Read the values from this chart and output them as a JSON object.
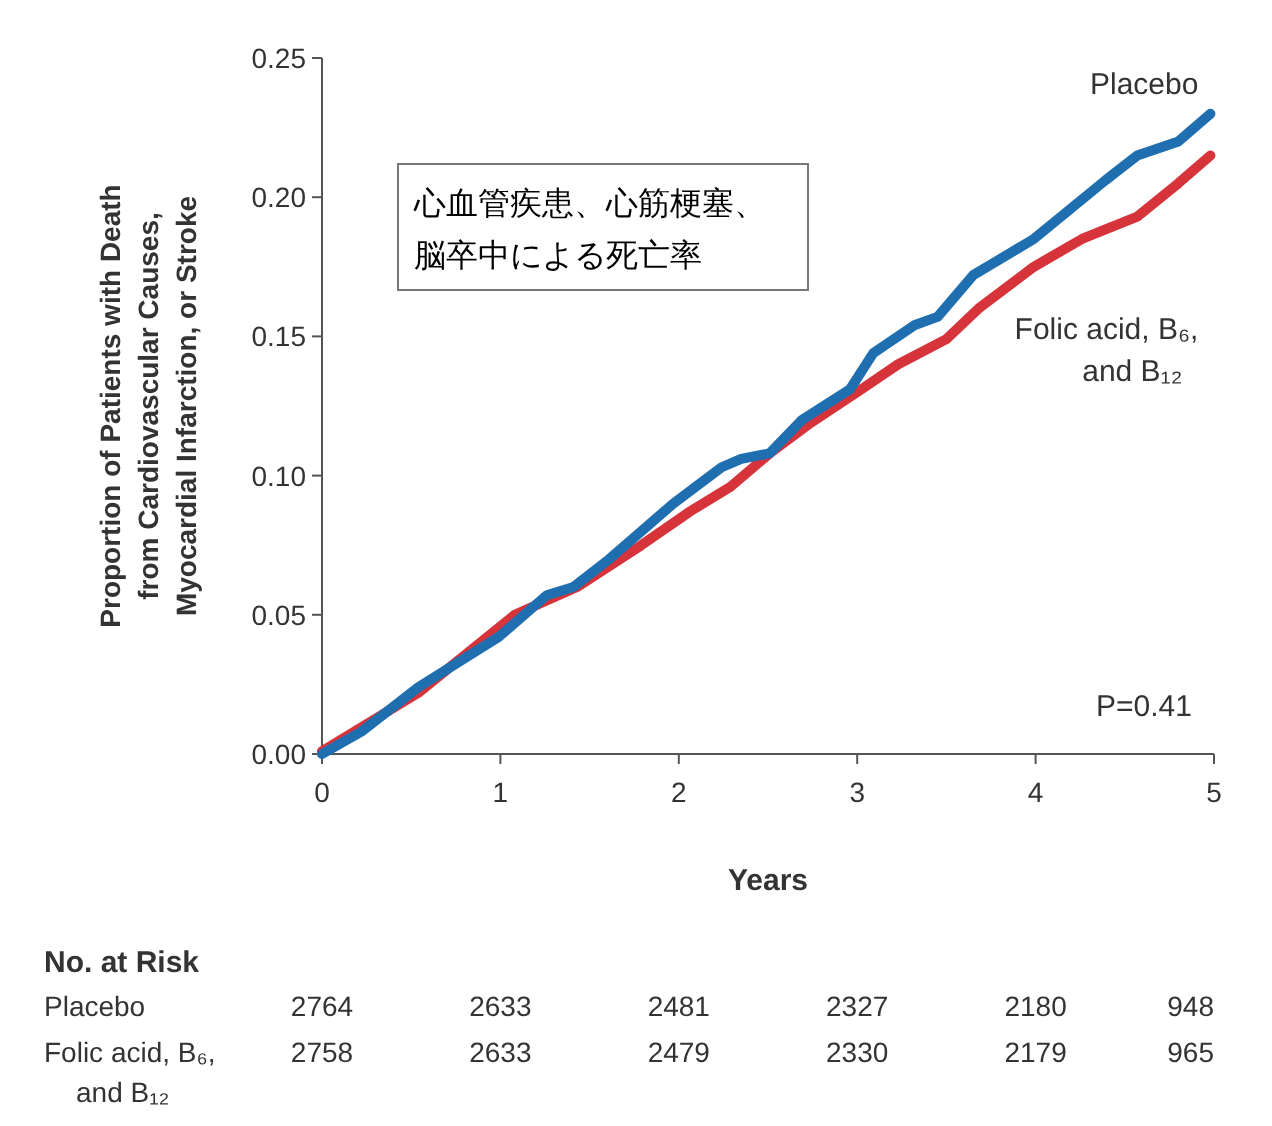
{
  "chart_data": {
    "type": "line",
    "title": "心血管疾患、心筋梗塞、脳卒中による死亡率",
    "xlabel": "Years",
    "ylabel": "Proportion of Patients with Death from Cardiovascular Causes, Myocardial Infarction, or Stroke",
    "xlim": [
      0,
      5
    ],
    "ylim": [
      0,
      0.25
    ],
    "xticks": [
      0,
      1,
      2,
      3,
      4,
      5
    ],
    "yticks": [
      {
        "value": 0,
        "label": "0.00"
      },
      {
        "value": 0.05,
        "label": "0.05"
      },
      {
        "value": 0.1,
        "label": "0.10"
      },
      {
        "value": 0.15,
        "label": "0.15"
      },
      {
        "value": 0.2,
        "label": "0.20"
      },
      {
        "value": 0.25,
        "label": "0.25"
      }
    ],
    "series": [
      {
        "name": "Folic acid, B₆, and B₁₂",
        "color": "#d6343a",
        "x": [
          0,
          0.54,
          1.08,
          1.43,
          1.79,
          2.06,
          2.29,
          2.51,
          2.74,
          3.0,
          3.23,
          3.5,
          3.68,
          3.99,
          4.26,
          4.57,
          4.8,
          4.98
        ],
        "values": [
          0.001,
          0.022,
          0.05,
          0.06,
          0.075,
          0.087,
          0.096,
          0.108,
          0.119,
          0.13,
          0.14,
          0.149,
          0.16,
          0.175,
          0.185,
          0.193,
          0.205,
          0.215
        ]
      },
      {
        "name": "Placebo",
        "color": "#1f6fb0",
        "x": [
          0,
          0.22,
          0.54,
          0.99,
          1.26,
          1.41,
          1.61,
          1.97,
          2.24,
          2.35,
          2.51,
          2.69,
          2.96,
          3.09,
          3.32,
          3.45,
          3.65,
          3.99,
          4.39,
          4.57,
          4.8,
          4.98
        ],
        "values": [
          0,
          0.008,
          0.024,
          0.042,
          0.057,
          0.06,
          0.07,
          0.09,
          0.103,
          0.106,
          0.108,
          0.12,
          0.131,
          0.144,
          0.154,
          0.157,
          0.172,
          0.185,
          0.206,
          0.215,
          0.22,
          0.23
        ]
      }
    ],
    "annotations": [
      "P=0.41",
      "No. at Risk",
      "Placebo",
      "2764",
      "2633",
      "2481",
      "2327",
      "2180",
      "948",
      "Folic acid, B₆, and B₁₂",
      "2758",
      "2633",
      "2479",
      "2330",
      "2179",
      "965"
    ]
  }
}
